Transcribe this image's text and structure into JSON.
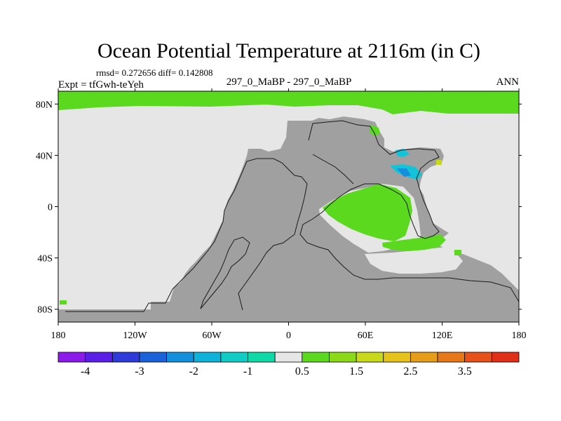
{
  "chart_data": {
    "type": "heatmap",
    "title": "Ocean Potential Temperature at 2116m (in C)",
    "stats": "rmsd= 0.272656 diff= 0.142808",
    "experiment": "Expt = tfGwh-teYeh",
    "case": "297_0_MaBP - 297_0_MaBP",
    "period": "ANN",
    "x_ticks": [
      "180",
      "120W",
      "60W",
      "0",
      "60E",
      "120E",
      "180"
    ],
    "x_tick_values": [
      -180,
      -120,
      -60,
      0,
      60,
      120,
      180
    ],
    "y_ticks": [
      "80N",
      "40N",
      "0",
      "40S",
      "80S"
    ],
    "y_tick_values": [
      80,
      40,
      0,
      -40,
      -80
    ],
    "xlim": [
      -180,
      180
    ],
    "ylim": [
      -90,
      90
    ],
    "colorbar": {
      "labels": [
        "-4",
        "-3",
        "-2",
        "-1",
        "0.5",
        "1.5",
        "2.5",
        "3.5"
      ],
      "label_positions": [
        1,
        3,
        5,
        7,
        9,
        11,
        13,
        15
      ],
      "colors": [
        "#8c1ae8",
        "#5a1ee6",
        "#2e3ad9",
        "#1a62d9",
        "#138fdb",
        "#0fb3d9",
        "#10ccc4",
        "#0fd9a6",
        "#e6e6e6",
        "#5ad91f",
        "#8cd91a",
        "#c8d91a",
        "#e6c31a",
        "#e69e1a",
        "#e6781a",
        "#e6521a",
        "#e0301a"
      ]
    },
    "field_colors": {
      "background": "#e6e6e6",
      "land": "#a0a0a0",
      "positive": "#5ad91f",
      "cyan": "#13c4d9",
      "blue": "#138fdb",
      "yellow": "#c8d91a"
    }
  }
}
